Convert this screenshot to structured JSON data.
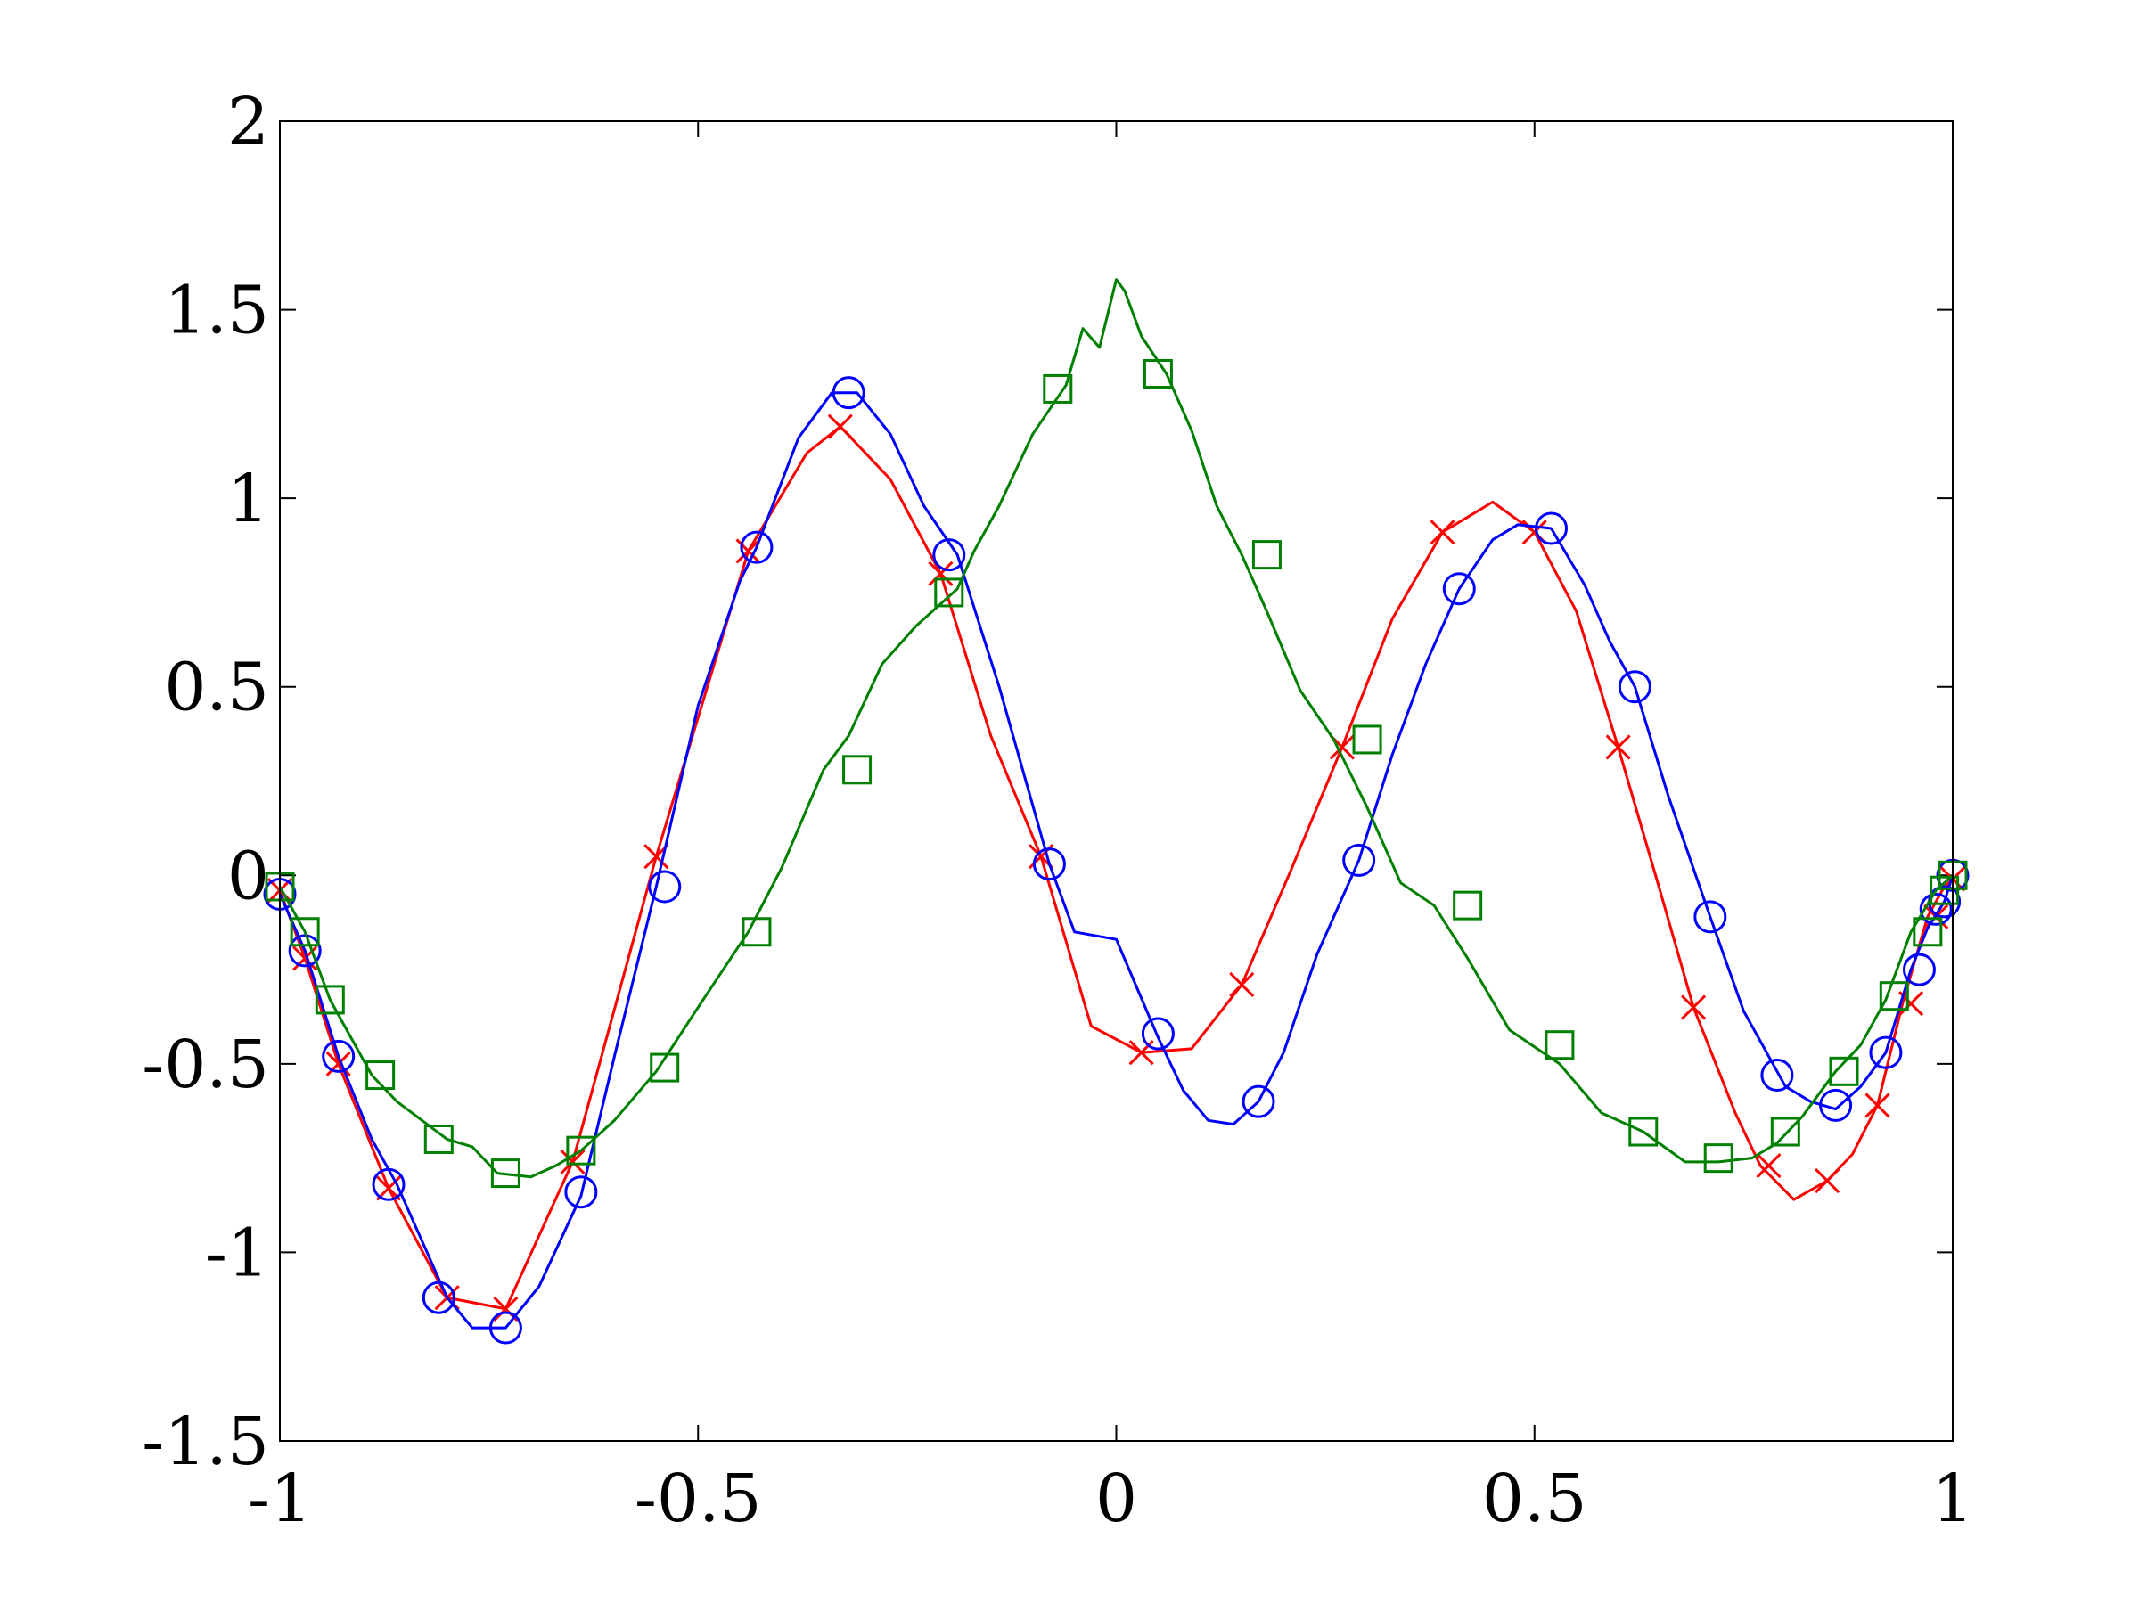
{
  "chart_data": {
    "type": "line",
    "title": "",
    "xlabel": "",
    "ylabel": "",
    "xlim": [
      -1,
      1
    ],
    "ylim": [
      -1.5,
      2
    ],
    "grid": false,
    "xticks": [
      -1,
      -0.5,
      0,
      0.5,
      1
    ],
    "yticks": [
      -1.5,
      -1,
      -0.5,
      0,
      0.5,
      1,
      1.5,
      2
    ],
    "xtick_labels": [
      "-1",
      "-0.5",
      "0",
      "0.5",
      "1"
    ],
    "ytick_labels": [
      "-1.5",
      "-1",
      "-0.5",
      "0",
      "0.5",
      "1",
      "1.5",
      "2"
    ],
    "series": [
      {
        "color": "#ff0000",
        "marker": "x",
        "x": [
          -1.0,
          -0.97,
          -0.93,
          -0.87,
          -0.8,
          -0.73,
          -0.65,
          -0.55,
          -0.44,
          -0.37,
          -0.33,
          -0.27,
          -0.21,
          -0.15,
          -0.09,
          -0.03,
          0.03,
          0.09,
          0.15,
          0.21,
          0.27,
          0.33,
          0.39,
          0.45,
          0.5,
          0.55,
          0.6,
          0.65,
          0.69,
          0.74,
          0.77,
          0.81,
          0.85,
          0.88,
          0.91,
          0.94,
          0.97,
          0.99,
          1.0
        ],
        "y": [
          -0.04,
          -0.22,
          -0.5,
          -0.83,
          -1.12,
          -1.15,
          -0.76,
          0.05,
          0.86,
          1.12,
          1.19,
          1.05,
          0.8,
          0.37,
          0.05,
          -0.4,
          -0.47,
          -0.46,
          -0.29,
          0.02,
          0.34,
          0.68,
          0.91,
          0.99,
          0.91,
          0.7,
          0.34,
          -0.04,
          -0.35,
          -0.63,
          -0.77,
          -0.86,
          -0.81,
          -0.74,
          -0.61,
          -0.34,
          -0.11,
          -0.03,
          -0.01
        ],
        "marker_x": [
          -1.0,
          -0.97,
          -0.93,
          -0.87,
          -0.8,
          -0.73,
          -0.65,
          -0.55,
          -0.44,
          -0.33,
          -0.21,
          -0.09,
          0.03,
          0.15,
          0.27,
          0.39,
          0.5,
          0.6,
          0.69,
          0.78,
          0.85,
          0.91,
          0.95,
          0.98,
          1.0
        ],
        "marker_y": [
          -0.04,
          -0.22,
          -0.5,
          -0.83,
          -1.12,
          -1.15,
          -0.76,
          0.05,
          0.86,
          1.19,
          0.8,
          0.05,
          -0.47,
          -0.29,
          0.34,
          0.91,
          0.91,
          0.34,
          -0.35,
          -0.77,
          -0.81,
          -0.61,
          -0.34,
          -0.11,
          -0.01
        ]
      },
      {
        "color": "#0000ff",
        "marker": "o",
        "x": [
          -1.0,
          -0.97,
          -0.93,
          -0.89,
          -0.86,
          -0.8,
          -0.77,
          -0.73,
          -0.69,
          -0.64,
          -0.6,
          -0.55,
          -0.5,
          -0.45,
          -0.43,
          -0.38,
          -0.34,
          -0.31,
          -0.27,
          -0.23,
          -0.19,
          -0.14,
          -0.08,
          -0.05,
          0.0,
          0.05,
          0.08,
          0.11,
          0.14,
          0.17,
          0.2,
          0.24,
          0.29,
          0.33,
          0.37,
          0.41,
          0.45,
          0.48,
          0.52,
          0.56,
          0.59,
          0.62,
          0.66,
          0.71,
          0.75,
          0.8,
          0.83,
          0.86,
          0.89,
          0.92,
          0.95,
          0.97,
          0.99,
          1.0
        ],
        "y": [
          -0.05,
          -0.2,
          -0.48,
          -0.7,
          -0.82,
          -1.12,
          -1.2,
          -1.2,
          -1.09,
          -0.85,
          -0.48,
          -0.03,
          0.45,
          0.78,
          0.87,
          1.16,
          1.28,
          1.28,
          1.17,
          0.98,
          0.85,
          0.5,
          0.03,
          -0.15,
          -0.17,
          -0.43,
          -0.57,
          -0.65,
          -0.66,
          -0.6,
          -0.47,
          -0.21,
          0.04,
          0.32,
          0.56,
          0.76,
          0.89,
          0.93,
          0.92,
          0.77,
          0.62,
          0.5,
          0.21,
          -0.11,
          -0.36,
          -0.56,
          -0.6,
          -0.62,
          -0.56,
          -0.47,
          -0.25,
          -0.14,
          -0.07,
          0.0
        ],
        "marker_x": [
          -1.0,
          -0.97,
          -0.93,
          -0.87,
          -0.81,
          -0.73,
          -0.64,
          -0.54,
          -0.43,
          -0.32,
          -0.2,
          -0.08,
          0.05,
          0.17,
          0.29,
          0.41,
          0.52,
          0.62,
          0.71,
          0.79,
          0.86,
          0.92,
          0.96,
          0.98,
          0.99,
          1.0
        ],
        "marker_y": [
          -0.05,
          -0.2,
          -0.48,
          -0.82,
          -1.12,
          -1.2,
          -0.84,
          -0.03,
          0.87,
          1.28,
          0.85,
          0.03,
          -0.42,
          -0.6,
          0.04,
          0.76,
          0.92,
          0.5,
          -0.11,
          -0.53,
          -0.61,
          -0.47,
          -0.25,
          -0.09,
          -0.07,
          0.0
        ]
      },
      {
        "color": "#008000",
        "marker": "s",
        "x": [
          -1.0,
          -0.97,
          -0.94,
          -0.89,
          -0.86,
          -0.8,
          -0.77,
          -0.74,
          -0.7,
          -0.67,
          -0.64,
          -0.6,
          -0.55,
          -0.5,
          -0.47,
          -0.44,
          -0.4,
          -0.35,
          -0.32,
          -0.28,
          -0.24,
          -0.19,
          -0.17,
          -0.14,
          -0.1,
          -0.06,
          -0.04,
          -0.02,
          0.0,
          0.01,
          0.03,
          0.06,
          0.09,
          0.12,
          0.15,
          0.18,
          0.22,
          0.26,
          0.3,
          0.34,
          0.38,
          0.42,
          0.47,
          0.53,
          0.58,
          0.63,
          0.68,
          0.72,
          0.76,
          0.79,
          0.82,
          0.86,
          0.89,
          0.92,
          0.95,
          0.98,
          1.0
        ],
        "y": [
          -0.03,
          -0.15,
          -0.33,
          -0.53,
          -0.6,
          -0.7,
          -0.72,
          -0.79,
          -0.8,
          -0.77,
          -0.73,
          -0.65,
          -0.52,
          -0.35,
          -0.25,
          -0.15,
          0.02,
          0.28,
          0.37,
          0.56,
          0.66,
          0.76,
          0.86,
          0.98,
          1.17,
          1.3,
          1.45,
          1.4,
          1.58,
          1.55,
          1.43,
          1.33,
          1.18,
          0.98,
          0.85,
          0.7,
          0.49,
          0.36,
          0.18,
          -0.02,
          -0.08,
          -0.22,
          -0.41,
          -0.5,
          -0.63,
          -0.68,
          -0.76,
          -0.76,
          -0.75,
          -0.71,
          -0.64,
          -0.52,
          -0.45,
          -0.33,
          -0.15,
          -0.04,
          0.0
        ],
        "marker_x": [
          -1.0,
          -0.97,
          -0.94,
          -0.88,
          -0.81,
          -0.73,
          -0.64,
          -0.54,
          -0.43,
          -0.31,
          -0.2,
          -0.07,
          0.05,
          0.18,
          0.3,
          0.42,
          0.53,
          0.63,
          0.72,
          0.8,
          0.87,
          0.93,
          0.97,
          0.99,
          1.0
        ],
        "marker_y": [
          -0.03,
          -0.15,
          -0.33,
          -0.53,
          -0.7,
          -0.79,
          -0.73,
          -0.51,
          -0.15,
          0.28,
          0.75,
          1.29,
          1.33,
          0.85,
          0.36,
          -0.08,
          -0.45,
          -0.68,
          -0.75,
          -0.68,
          -0.52,
          -0.32,
          -0.15,
          -0.04,
          0.0
        ]
      }
    ]
  }
}
